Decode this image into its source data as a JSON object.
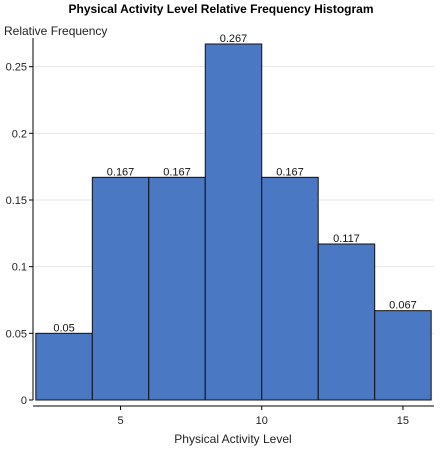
{
  "chart_data": {
    "type": "bar",
    "subtype": "histogram",
    "title": "Physical Activity Level Relative Frequency Histogram",
    "xlabel": "Physical Activity Level",
    "ylabel": "Relative Frequency",
    "bins": [
      {
        "start": 2,
        "end": 4,
        "value": 0.05,
        "label": "0.05"
      },
      {
        "start": 4,
        "end": 6,
        "value": 0.167,
        "label": "0.167"
      },
      {
        "start": 6,
        "end": 8,
        "value": 0.167,
        "label": "0.167"
      },
      {
        "start": 8,
        "end": 10,
        "value": 0.267,
        "label": "0.267"
      },
      {
        "start": 10,
        "end": 12,
        "value": 0.167,
        "label": "0.167"
      },
      {
        "start": 12,
        "end": 14,
        "value": 0.117,
        "label": "0.117"
      },
      {
        "start": 14,
        "end": 16,
        "value": 0.067,
        "label": "0.067"
      }
    ],
    "xlim": [
      1.9,
      16.1
    ],
    "ylim": [
      0,
      0.27
    ],
    "x_ticks": [
      5,
      10,
      15
    ],
    "y_ticks": [
      0,
      0.05,
      0.1,
      0.15,
      0.2,
      0.25
    ],
    "grid": true,
    "bar_color": "#4a78c2"
  }
}
